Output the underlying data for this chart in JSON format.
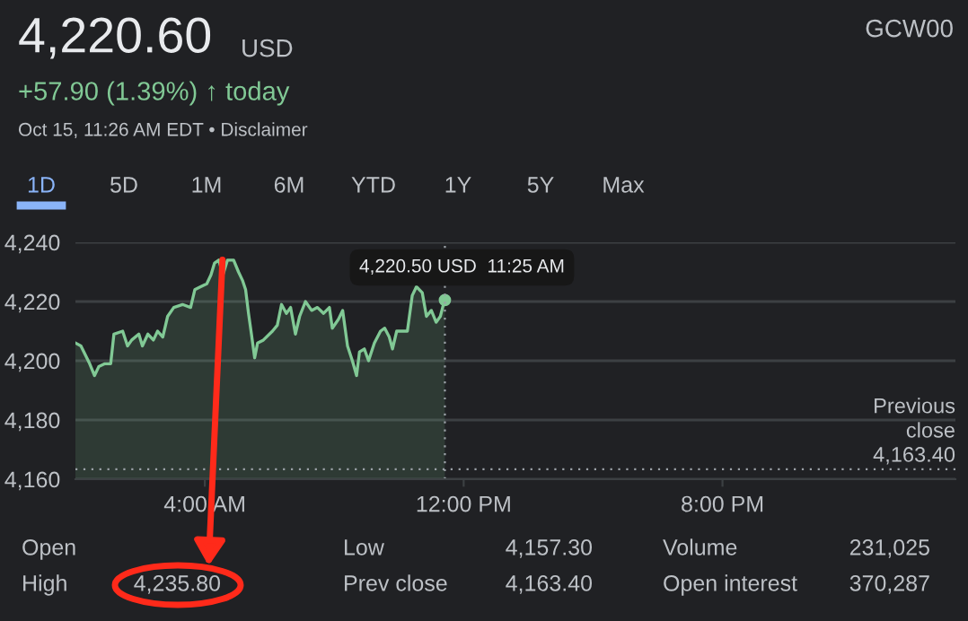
{
  "chart_data": {
    "type": "area",
    "title": "4,220.60",
    "subtitle": "+57.90 (1.39%) ↑ today",
    "annotations": [
      "USD",
      "Oct 15, 11:26 AM EDT • Disclaimer",
      "GCW00",
      "1D",
      "5D",
      "1M",
      "6M",
      "YTD",
      "1Y",
      "5Y",
      "Max",
      "Open",
      "High",
      "4,235.80",
      "Low",
      "Prev close",
      "4,157.30",
      "4,163.40",
      "Volume",
      "Open interest",
      "231,025",
      "370,287",
      "4,220.50 USD  11:25 AM"
    ],
    "x": [
      0,
      0.17,
      0.44,
      0.59,
      0.72,
      0.91,
      1.09,
      1.19,
      1.46,
      1.61,
      1.74,
      1.96,
      2.07,
      2.24,
      2.41,
      2.54,
      2.7,
      2.85,
      3.04,
      3.31,
      3.56,
      3.69,
      3.87,
      4.06,
      4.19,
      4.3,
      4.43,
      4.56,
      4.7,
      4.89,
      5.04,
      5.17,
      5.26,
      5.35,
      5.44,
      5.54,
      5.63,
      5.81,
      6.09,
      6.24,
      6.37,
      6.52,
      6.65,
      6.8,
      6.93,
      7.11,
      7.3,
      7.48,
      7.67,
      7.85,
      7.94,
      8.13,
      8.26,
      8.41,
      8.56,
      8.69,
      8.78,
      8.93,
      9.06,
      9.24,
      9.43,
      9.56,
      9.7,
      9.8,
      9.93,
      10.11,
      10.26,
      10.41,
      10.54,
      10.72,
      10.85,
      11.0,
      11.15,
      11.28,
      11.35,
      11.42
    ],
    "series": [
      {
        "color": "#81c995",
        "values": [
          4206,
          4205,
          4199,
          4195,
          4198,
          4199,
          4199,
          4209,
          4210,
          4205,
          4207,
          4209,
          4205,
          4209,
          4207,
          4210,
          4208,
          4215,
          4218,
          4219,
          4218,
          4224,
          4225,
          4226,
          4229,
          4233,
          4234,
          4229,
          4234,
          4234,
          4230,
          4227,
          4224,
          4216,
          4209,
          4201,
          4206,
          4207,
          4210,
          4212,
          4219,
          4216,
          4218,
          4209,
          4215,
          4220,
          4217,
          4218,
          4216,
          4218,
          4211,
          4214,
          4217,
          4205,
          4200,
          4195,
          4203,
          4204,
          4200,
          4206,
          4210,
          4211,
          4208,
          4204,
          4210,
          4210,
          4210,
          4222,
          4225,
          4223,
          4215,
          4217,
          4213,
          4215,
          4218,
          4220.5
        ]
      }
    ],
    "xlim": [
      0,
      27.2
    ],
    "ylim": [
      4160,
      4240
    ],
    "xticks": [
      {
        "value": 4,
        "label": "4:00 AM"
      },
      {
        "value": 12,
        "label": "12:00 PM"
      },
      {
        "value": 20,
        "label": "8:00 PM"
      }
    ],
    "yticks": [
      {
        "value": 4160,
        "label": "4,160"
      },
      {
        "value": 4180,
        "label": "4,180"
      },
      {
        "value": 4200,
        "label": "4,200"
      },
      {
        "value": 4220,
        "label": "4,220"
      },
      {
        "value": 4240,
        "label": "4,240"
      }
    ],
    "grid": "y",
    "ref_lines": [
      {
        "axis": "y",
        "value": 4163.4,
        "label": "Previous\nclose\n4,163.40",
        "color": "#9aa0a6",
        "line_style": "dotted"
      },
      {
        "axis": "x",
        "value": 11.42,
        "color": "#9aa0a6",
        "line_style": "dotted"
      }
    ]
  }
}
